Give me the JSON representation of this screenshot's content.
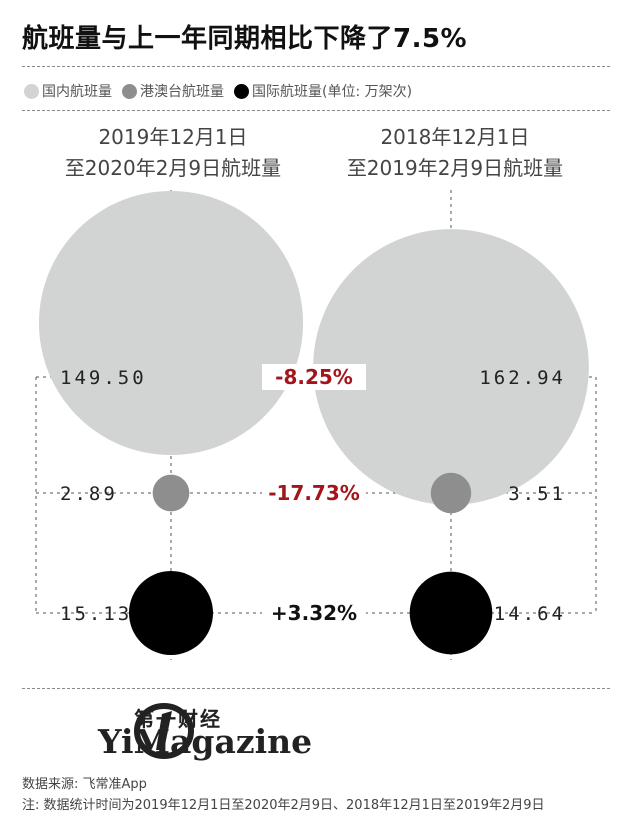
{
  "title": "航班量与上一年同期相比下降了7.5%",
  "legend": [
    {
      "label": "国内航班量",
      "color": "#d2d4d3",
      "icon": "circle-light-gray-icon"
    },
    {
      "label": "港澳台航班量",
      "color": "#8e8e8e",
      "icon": "circle-dark-gray-icon"
    },
    {
      "label": "国际航班量(单位: 万架次)",
      "color": "#000000",
      "icon": "circle-black-icon"
    }
  ],
  "panels": [
    {
      "line1": "2019年12月1日",
      "line2": "至2020年2月9日航班量"
    },
    {
      "line1": "2018年12月1日",
      "line2": "至2019年2月9日航班量"
    }
  ],
  "chart_data": {
    "type": "bubble",
    "unit": "万架次",
    "series": [
      {
        "name": "国内航班量",
        "color": "#d2d4d3",
        "left_value": "149.50",
        "right_value": "162.94",
        "change": "-8.25%",
        "change_color": "#a4151b"
      },
      {
        "name": "港澳台航班量",
        "color": "#8e8e8e",
        "left_value": "2.89",
        "right_value": "3.51",
        "change": "-17.73%",
        "change_color": "#a4151b"
      },
      {
        "name": "国际航班量",
        "color": "#000000",
        "left_value": "15.13",
        "right_value": "14.64",
        "change": "+3.32%",
        "change_color": "#111111"
      }
    ]
  },
  "brand": {
    "cn": "第一财经",
    "en": "YiMagazine",
    "logo_icon": "yicai-logo-icon"
  },
  "source": "数据来源: 飞常准App",
  "note": "注: 数据统计时间为2019年12月1日至2020年2月9日、2018年12月1日至2019年2月9日"
}
